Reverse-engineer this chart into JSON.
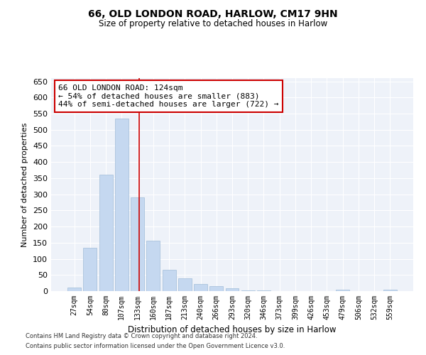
{
  "title1": "66, OLD LONDON ROAD, HARLOW, CM17 9HN",
  "title2": "Size of property relative to detached houses in Harlow",
  "xlabel": "Distribution of detached houses by size in Harlow",
  "ylabel": "Number of detached properties",
  "categories": [
    "27sqm",
    "54sqm",
    "80sqm",
    "107sqm",
    "133sqm",
    "160sqm",
    "187sqm",
    "213sqm",
    "240sqm",
    "266sqm",
    "293sqm",
    "320sqm",
    "346sqm",
    "373sqm",
    "399sqm",
    "426sqm",
    "453sqm",
    "479sqm",
    "506sqm",
    "532sqm",
    "559sqm"
  ],
  "values": [
    10,
    135,
    360,
    535,
    290,
    157,
    65,
    40,
    22,
    15,
    8,
    3,
    2,
    1,
    1,
    0,
    0,
    5,
    0,
    0,
    4
  ],
  "bar_color": "#c5d8f0",
  "bar_edge_color": "#a0bcd8",
  "property_line_color": "#cc0000",
  "annotation_text": "66 OLD LONDON ROAD: 124sqm\n← 54% of detached houses are smaller (883)\n44% of semi-detached houses are larger (722) →",
  "annotation_box_color": "#ffffff",
  "annotation_box_edge_color": "#cc0000",
  "ylim": [
    0,
    660
  ],
  "yticks": [
    0,
    50,
    100,
    150,
    200,
    250,
    300,
    350,
    400,
    450,
    500,
    550,
    600,
    650
  ],
  "background_color": "#eef2f9",
  "grid_color": "#ffffff",
  "footer1": "Contains HM Land Registry data © Crown copyright and database right 2024.",
  "footer2": "Contains public sector information licensed under the Open Government Licence v3.0."
}
